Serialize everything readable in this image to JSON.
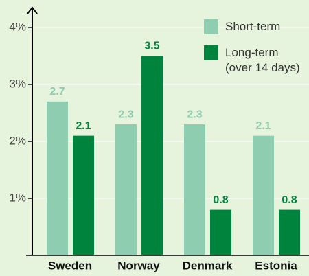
{
  "chart_data": {
    "type": "bar",
    "categories": [
      "Sweden",
      "Norway",
      "Denmark",
      "Estonia"
    ],
    "series": [
      {
        "name": "Short-term",
        "color": "#8ecdb0",
        "values": [
          2.7,
          2.3,
          2.3,
          2.1
        ]
      },
      {
        "name": "Long-term (over 14 days)",
        "color": "#00843d",
        "values": [
          2.1,
          3.5,
          0.8,
          0.8
        ]
      }
    ],
    "ylim": [
      0,
      4.3
    ],
    "yticks": [
      {
        "value": 1,
        "label": "1%"
      },
      {
        "value": 2,
        "label": "2%"
      },
      {
        "value": 3,
        "label": "3%"
      },
      {
        "value": 4,
        "label": "4%"
      }
    ],
    "grid": true,
    "legend": "top-right",
    "background": "#e6f3dd"
  }
}
